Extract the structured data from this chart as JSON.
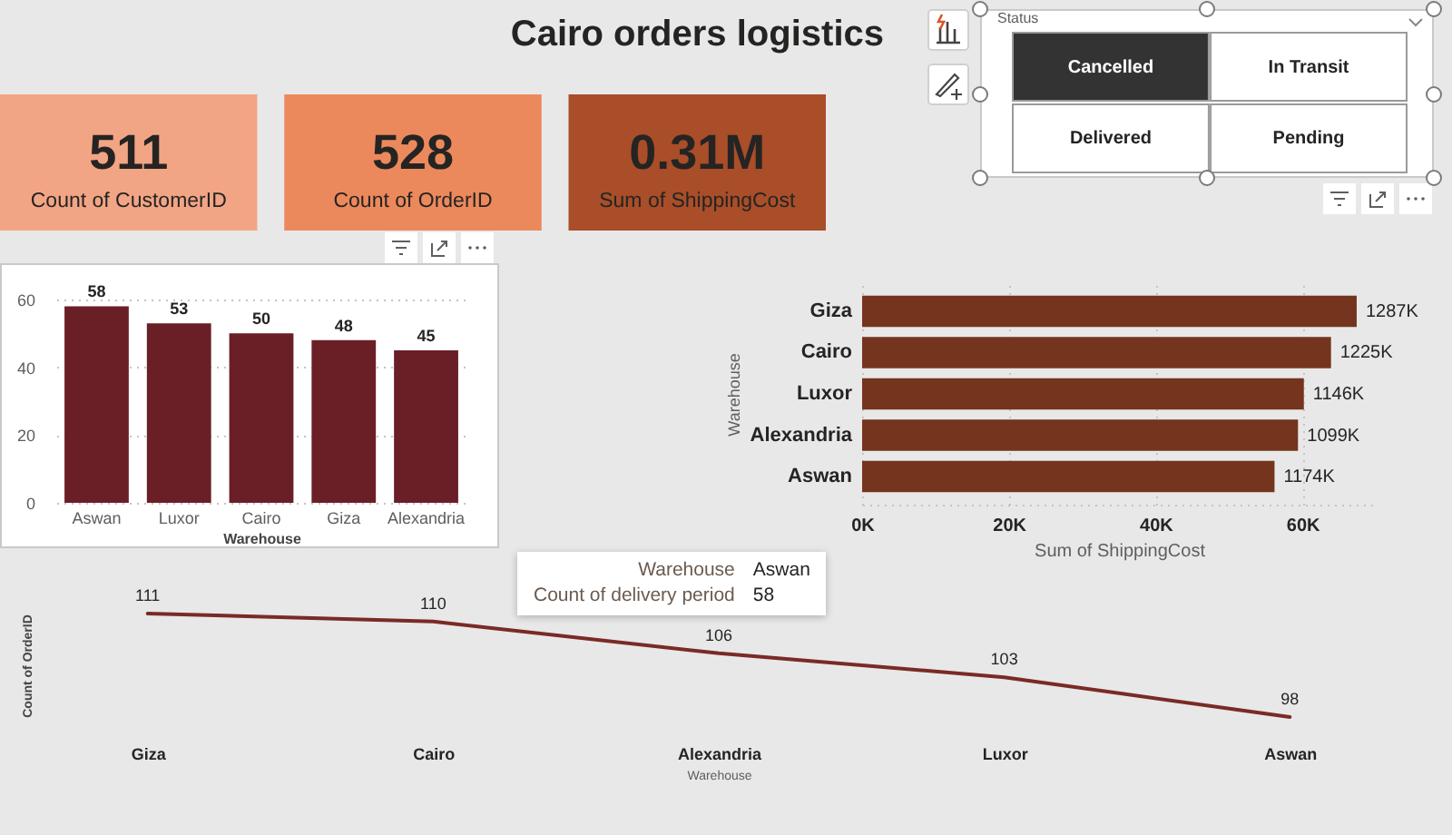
{
  "chart_data": [
    {
      "type": "other",
      "title": "Cairo orders logistics",
      "categories": [
        "Count of CustomerID",
        "Count of OrderID",
        "Sum of ShippingCost"
      ],
      "value_labels": [
        "511",
        "528",
        "0.31M"
      ],
      "colors": [
        "#f2a584",
        "#ec895c",
        "#a94e28"
      ]
    },
    {
      "type": "other",
      "title": "Status",
      "categories": [
        "Cancelled",
        "In Transit",
        "Delivered",
        "Pending"
      ],
      "colors": [
        "#333333",
        "#ffffff",
        "#ffffff",
        "#ffffff"
      ]
    },
    {
      "type": "bar",
      "categories": [
        "Aswan",
        "Luxor",
        "Cairo",
        "Giza",
        "Alexandria"
      ],
      "values": [
        58,
        53,
        50,
        48,
        45
      ],
      "color": "#6a1f26",
      "xlabel": "Warehouse",
      "ylim": [
        0,
        60
      ],
      "yticks": [
        0,
        20,
        40,
        60
      ],
      "grid": "y",
      "data_labels": true,
      "annotations": [
        "Warehouse",
        "Aswan",
        "Count of delivery period",
        "58"
      ]
    },
    {
      "type": "bar",
      "orientation": "horizontal",
      "categories": [
        "Giza",
        "Cairo",
        "Luxor",
        "Alexandria",
        "Aswan"
      ],
      "values": [
        67400,
        63900,
        60200,
        59400,
        56200
      ],
      "color": "#74341e",
      "xlabel": "Sum of ShippingCost",
      "ylabel": "Warehouse",
      "xlim": [
        0,
        70000
      ],
      "xticks": [
        {
          "value": 0,
          "label": "0K"
        },
        {
          "value": 20000,
          "label": "20K"
        },
        {
          "value": 40000,
          "label": "40K"
        },
        {
          "value": 60000,
          "label": "60K"
        }
      ],
      "grid": "x",
      "annotations": [
        {
          "text": "1287K",
          "x": 67400,
          "y": "Giza"
        },
        {
          "text": "1225K",
          "x": 63900,
          "y": "Cairo"
        },
        {
          "text": "1146K",
          "x": 60200,
          "y": "Luxor"
        },
        {
          "text": "1099K",
          "x": 59400,
          "y": "Alexandria"
        },
        {
          "text": "1174K",
          "x": 56200,
          "y": "Aswan"
        }
      ]
    },
    {
      "type": "line",
      "categories": [
        "Giza",
        "Cairo",
        "Alexandria",
        "Luxor",
        "Aswan"
      ],
      "values": [
        111,
        110,
        106,
        103,
        98
      ],
      "color": "#7a2a25",
      "xlabel": "Warehouse",
      "ylabel": "Count of OrderID",
      "tick_labels": "x",
      "data_labels": true
    }
  ]
}
